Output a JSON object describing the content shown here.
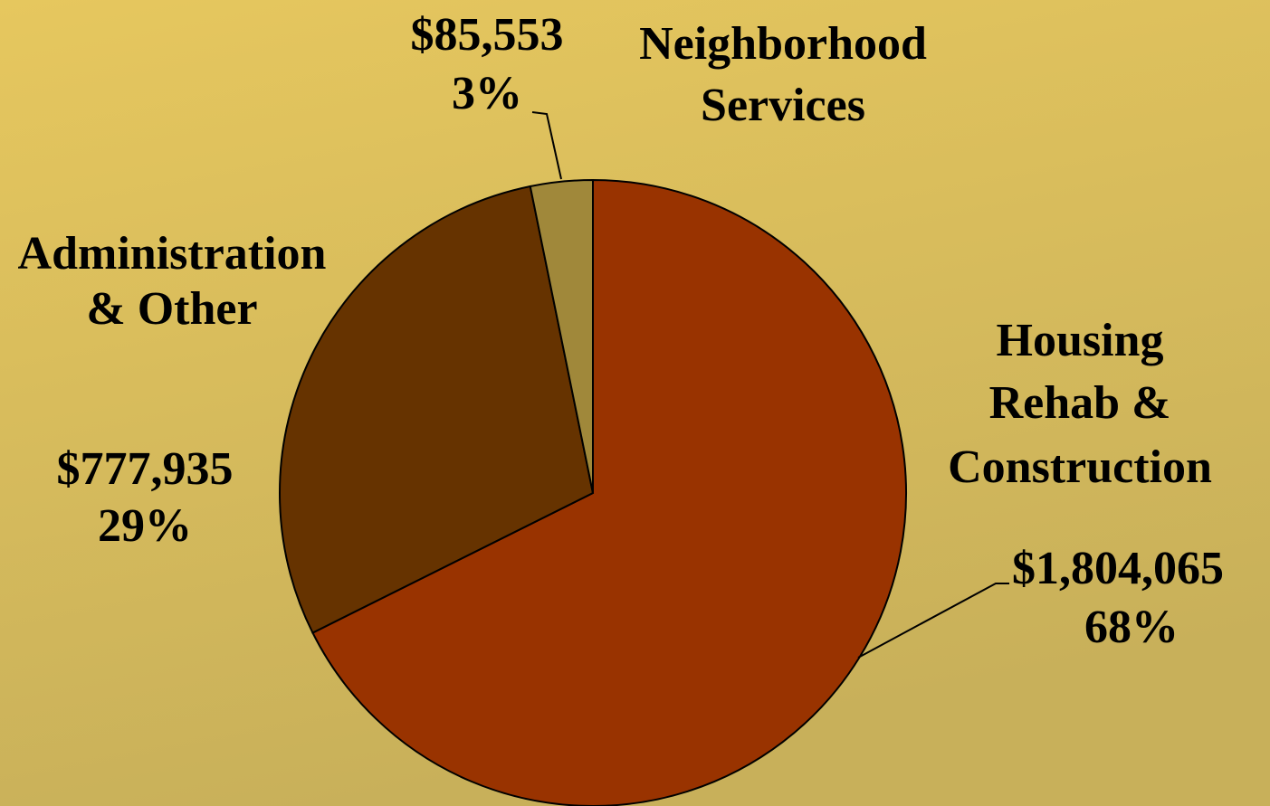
{
  "chart_data": {
    "type": "pie",
    "categories": [
      [
        "Housing",
        "Rehab &",
        "Construction"
      ],
      [
        "Administration",
        "& Other"
      ],
      [
        "Neighborhood",
        "Services"
      ]
    ],
    "values": [
      1804065,
      777935,
      85553
    ],
    "value_labels": [
      "$1,804,065",
      "$777,935",
      "$85,553"
    ],
    "percent_labels": [
      "68%",
      "29%",
      "3%"
    ],
    "colors": [
      "#993300",
      "#663300",
      "#a0883a"
    ]
  }
}
